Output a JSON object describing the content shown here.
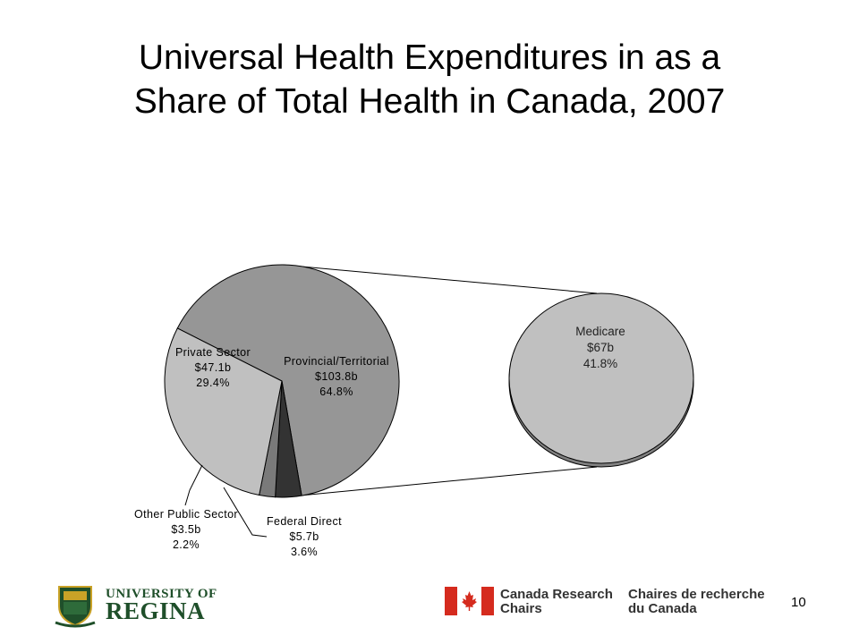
{
  "slide": {
    "title_line1": "Universal Health Expenditures in as a",
    "title_line2": "Share of Total Health in Canada, 2007",
    "page_number": "10"
  },
  "logos": {
    "university_line1": "UNIVERSITY OF",
    "university_line2": "REGINA",
    "crc_en_line1": "Canada Research",
    "crc_en_line2": "Chairs",
    "crc_fr_line1": "Chaires de recherche",
    "crc_fr_line2": "du Canada"
  },
  "chart_data": {
    "type": "pie",
    "title": "Universal Health Expenditures in as a Share of Total Health in Canada, 2007",
    "slices": [
      {
        "name": "Provincial/Territorial",
        "value_label": "$103.8b",
        "percent_label": "64.8%",
        "value": 103.8,
        "percent": 64.8,
        "color": "#969696"
      },
      {
        "name": "Federal Direct",
        "value_label": "$5.7b",
        "percent_label": "3.6%",
        "value": 5.7,
        "percent": 3.6,
        "color": "#333333"
      },
      {
        "name": "Other Public Sector",
        "value_label": "$3.5b",
        "percent_label": "2.2%",
        "value": 3.5,
        "percent": 2.2,
        "color": "#7a7a7a"
      },
      {
        "name": "Private Sector",
        "value_label": "$47.1b",
        "percent_label": "29.4%",
        "value": 47.1,
        "percent": 29.4,
        "color": "#c0c0c0"
      }
    ],
    "breakout": {
      "name": "Medicare",
      "value_label": "$67b",
      "percent_label": "41.8%",
      "value": 67,
      "percent": 41.8,
      "color": "#c0c0c0"
    }
  }
}
